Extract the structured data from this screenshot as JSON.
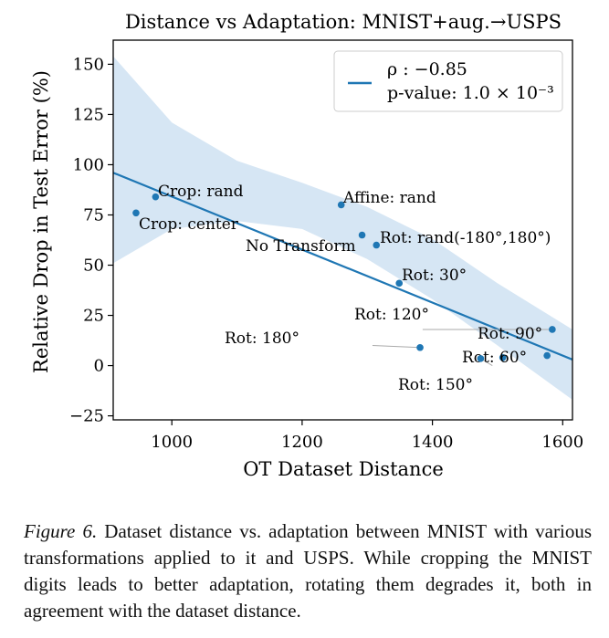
{
  "chart_data": {
    "type": "scatter",
    "title": "Distance vs Adaptation: MNIST+aug.→USPS",
    "xlabel": "OT Dataset Distance",
    "ylabel": "Relative Drop in Test Error (%)",
    "xlim": [
      910,
      1615
    ],
    "ylim": [
      -27,
      162
    ],
    "xticks": [
      1000,
      1200,
      1400,
      1600
    ],
    "yticks": [
      -25,
      0,
      25,
      50,
      75,
      100,
      125,
      150
    ],
    "points": [
      {
        "label": "Crop: rand",
        "x": 975,
        "y": 84
      },
      {
        "label": "Crop: center",
        "x": 945,
        "y": 76
      },
      {
        "label": "Affine: rand",
        "x": 1260,
        "y": 80
      },
      {
        "label": "No Transform",
        "x": 1314,
        "y": 60
      },
      {
        "label": "Rot: rand(-180°,180°)",
        "x": 1292,
        "y": 65
      },
      {
        "label": "Rot: 30°",
        "x": 1349,
        "y": 41
      },
      {
        "label": "Rot: 120°",
        "x": 1584,
        "y": 18
      },
      {
        "label": "Rot: 180°",
        "x": 1381,
        "y": 9
      },
      {
        "label": "Rot: 90°",
        "x": 1576,
        "y": 5
      },
      {
        "label": "Rot: 60°",
        "x": 1508,
        "y": 4
      },
      {
        "label": "Rot: 150°",
        "x": 1474,
        "y": 3.5
      }
    ],
    "regression": {
      "x": [
        910,
        1615
      ],
      "y": [
        96,
        3
      ]
    },
    "confidence_band": {
      "x": [
        910,
        1000,
        1100,
        1200,
        1300,
        1400,
        1500,
        1615
      ],
      "upper": [
        154,
        121,
        102,
        91,
        79,
        63,
        41,
        18
      ],
      "lower": [
        51,
        68,
        72,
        68,
        53,
        33,
        10,
        -17
      ]
    },
    "legend": {
      "rho": "ρ : −0.85",
      "pvalue": "p-value: 1.0 × 10⁻³",
      "position": "top-right"
    },
    "series_color": "#1f77b4",
    "band_color": "#d6e6f4"
  },
  "caption": {
    "label": "Figure 6.",
    "text": "Dataset distance vs. adaptation between MNIST with various transformations applied to it and USPS. While cropping the MNIST digits leads to better adaptation, rotating them degrades it, both in agreement with the dataset distance."
  }
}
